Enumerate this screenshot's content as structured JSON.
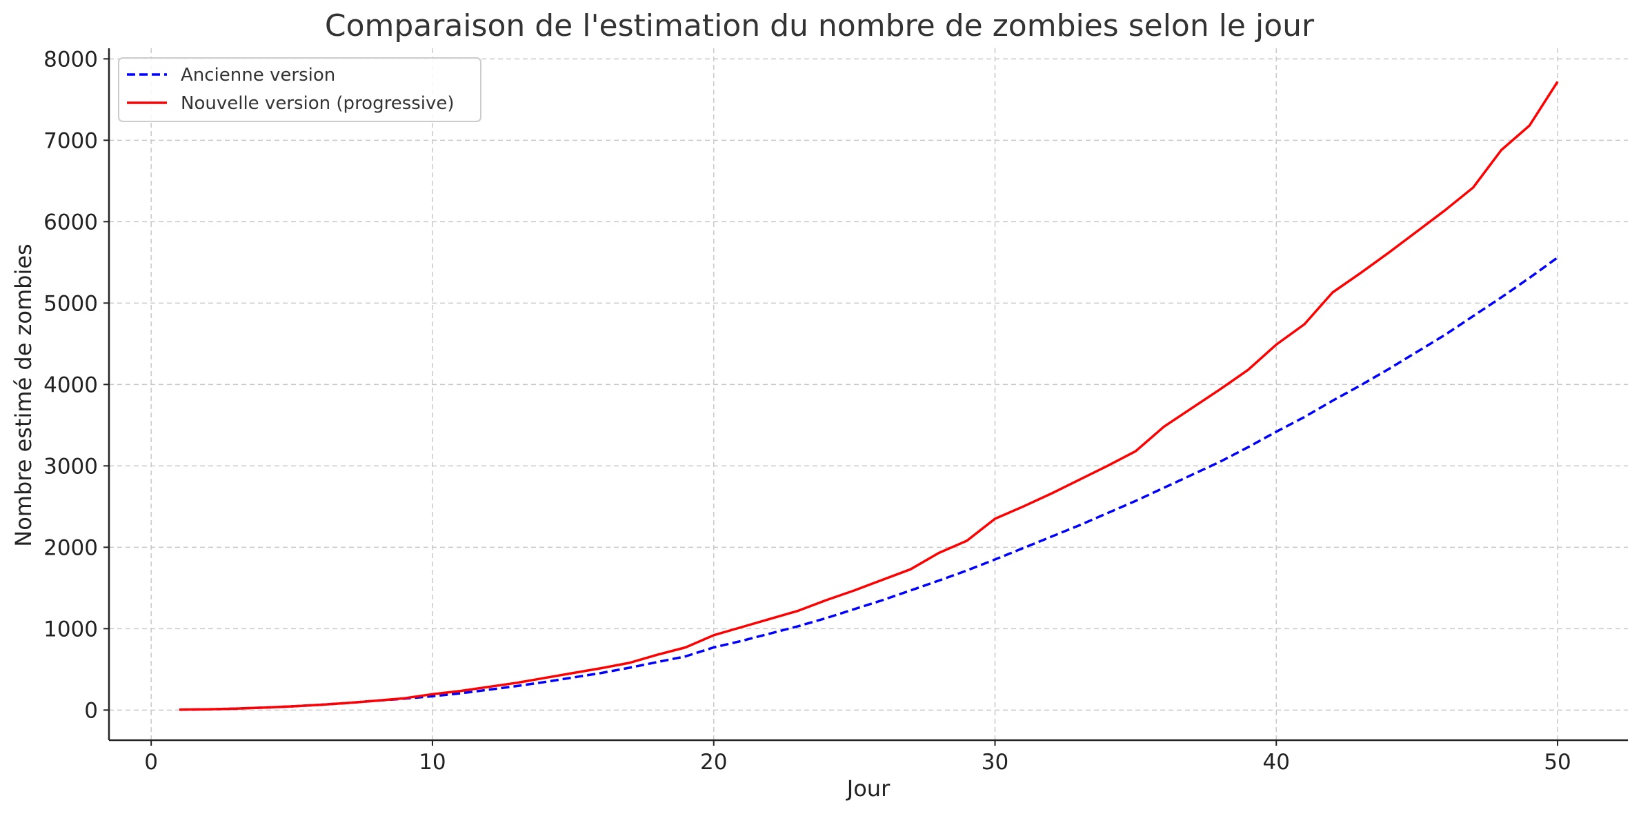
{
  "chart_data": {
    "type": "line",
    "title": "Comparaison de l'estimation du nombre de zombies selon le jour",
    "xlabel": "Jour",
    "ylabel": "Nombre estimé de zombies",
    "xlim": [
      -1.5,
      52.5
    ],
    "ylim": [
      -370,
      8130
    ],
    "x_ticks": [
      0,
      10,
      20,
      30,
      40,
      50
    ],
    "y_ticks": [
      0,
      1000,
      2000,
      3000,
      4000,
      5000,
      6000,
      7000,
      8000
    ],
    "grid": true,
    "legend_position": "top-left",
    "x": [
      1,
      2,
      3,
      4,
      5,
      6,
      7,
      8,
      9,
      10,
      11,
      12,
      13,
      14,
      15,
      16,
      17,
      18,
      19,
      20,
      21,
      22,
      23,
      24,
      25,
      26,
      27,
      28,
      29,
      30,
      31,
      32,
      33,
      34,
      35,
      36,
      37,
      38,
      39,
      40,
      41,
      42,
      43,
      44,
      45,
      46,
      47,
      48,
      49,
      50
    ],
    "series": [
      {
        "name": "Ancienne version",
        "color": "#0000ff",
        "style": "dashed",
        "values": [
          5,
          9,
          18,
          30,
          45,
          65,
          88,
          115,
          140,
          170,
          205,
          250,
          295,
          345,
          400,
          455,
          520,
          590,
          660,
          770,
          850,
          940,
          1030,
          1130,
          1240,
          1350,
          1470,
          1590,
          1715,
          1850,
          1990,
          2130,
          2270,
          2420,
          2570,
          2730,
          2890,
          3050,
          3230,
          3420,
          3600,
          3800,
          3990,
          4190,
          4400,
          4610,
          4840,
          5070,
          5310,
          5560
        ]
      },
      {
        "name": "Nouvelle version (progressive)",
        "color": "#ff0000",
        "style": "solid",
        "values": [
          5,
          9,
          18,
          30,
          45,
          65,
          88,
          115,
          145,
          195,
          235,
          285,
          335,
          395,
          455,
          515,
          580,
          680,
          770,
          920,
          1020,
          1120,
          1220,
          1350,
          1470,
          1600,
          1730,
          1930,
          2080,
          2350,
          2500,
          2660,
          2830,
          3000,
          3180,
          3480,
          3710,
          3940,
          4180,
          4490,
          4740,
          5130,
          5370,
          5620,
          5880,
          6140,
          6420,
          6880,
          7180,
          7720
        ]
      }
    ]
  }
}
